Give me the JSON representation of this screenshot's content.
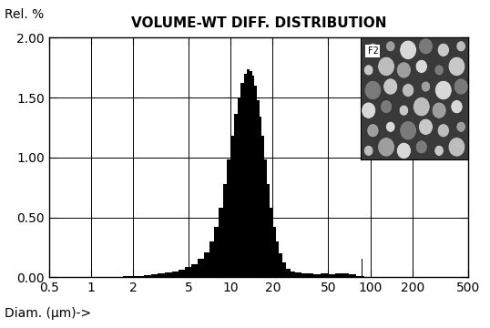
{
  "chart_data": {
    "type": "histogram",
    "title": "VOLUME-WT DIFF. DISTRIBUTION",
    "y_label": "Rel. %",
    "x_label": "Diam. (µm)->",
    "annotations": [
      "F2"
    ],
    "log": "x",
    "grid": true,
    "color": "#000000",
    "bins": [
      1.5,
      1.7,
      1.9,
      2.1,
      2.4,
      2.7,
      3.0,
      3.4,
      3.8,
      4.2,
      4.7,
      5.2,
      5.8,
      6.4,
      7.0,
      7.6,
      8.2,
      8.8,
      9.4,
      10.0,
      10.6,
      11.2,
      11.8,
      12.4,
      13.0,
      13.6,
      14.2,
      14.8,
      15.4,
      16.0,
      16.7,
      17.4,
      18.2,
      19.0,
      20.0,
      21.0,
      22.0,
      23.5,
      25.0,
      27.0,
      29.0,
      32.0,
      35.0,
      39.0,
      44.0,
      50.0,
      56.0,
      63.0,
      70.0,
      79.0,
      86.0,
      88.0,
      90.0
    ],
    "values": [
      0.003,
      0.006,
      0.008,
      0.012,
      0.016,
      0.022,
      0.03,
      0.04,
      0.05,
      0.065,
      0.085,
      0.11,
      0.15,
      0.21,
      0.3,
      0.42,
      0.58,
      0.78,
      0.98,
      1.18,
      1.36,
      1.5,
      1.62,
      1.7,
      1.74,
      1.72,
      1.68,
      1.6,
      1.48,
      1.34,
      1.18,
      0.98,
      0.78,
      0.58,
      0.42,
      0.3,
      0.2,
      0.12,
      0.07,
      0.05,
      0.04,
      0.03,
      0.03,
      0.025,
      0.03,
      0.025,
      0.03,
      0.03,
      0.025,
      0.01,
      0.15,
      0.01
    ],
    "xlim": [
      0.5,
      500
    ],
    "xticks": [
      0.5,
      1,
      2,
      5,
      10,
      20,
      50,
      100,
      200,
      500
    ],
    "ylim": [
      0,
      2.0
    ],
    "yticks": [
      {
        "value": 0,
        "label": "0.00"
      },
      {
        "value": 0.5,
        "label": "0.50"
      },
      {
        "value": 1.0,
        "label": "1.00"
      },
      {
        "value": 1.5,
        "label": "1.50"
      },
      {
        "value": 2.0,
        "label": "2.00"
      }
    ]
  }
}
